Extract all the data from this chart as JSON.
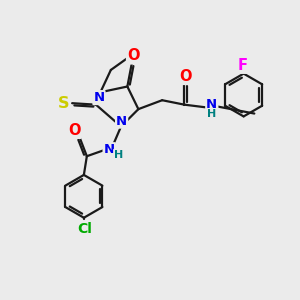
{
  "bg_color": "#ebebeb",
  "bond_color": "#1a1a1a",
  "bond_lw": 1.6,
  "atom_colors": {
    "N": "#0000ee",
    "O": "#ff0000",
    "S": "#cccc00",
    "Cl": "#00aa00",
    "F": "#ff00ff",
    "H": "#008080",
    "C": "#1a1a1a"
  },
  "fs": 9.5
}
